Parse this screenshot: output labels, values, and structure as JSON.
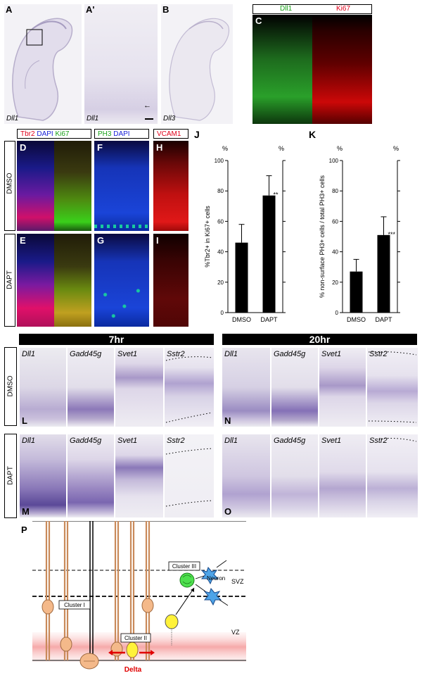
{
  "figure": {
    "top": {
      "panels": [
        {
          "letter": "A",
          "gene": "Dll1"
        },
        {
          "letter": "A'",
          "gene": "Dll1"
        },
        {
          "letter": "B",
          "gene": "Dll3"
        },
        {
          "letter": "C",
          "markers": [
            "Dll1",
            "Ki67"
          ]
        }
      ]
    },
    "fluor": {
      "header1": {
        "labels": [
          "Tbr2",
          "DAPI",
          "Ki67"
        ],
        "colors": [
          "#e0001a",
          "#1a22d8",
          "#1aa21a"
        ]
      },
      "header2": {
        "labels": [
          "PH3",
          "DAPI"
        ],
        "colors": [
          "#1aa21a",
          "#1a22d8"
        ]
      },
      "header3": {
        "labels": [
          "VCAM1"
        ],
        "colors": [
          "#e0001a"
        ]
      },
      "rows": [
        "DMSO",
        "DAPT"
      ],
      "letters": [
        "D",
        "F",
        "H",
        "E",
        "G",
        "I"
      ]
    },
    "bottom": {
      "timepoints": [
        "7hr",
        "20hr"
      ],
      "rows": [
        "DMSO",
        "DAPT"
      ],
      "genes": [
        "Dll1",
        "Gadd45g",
        "Svet1",
        "Sstr2"
      ],
      "letters": [
        "L",
        "N",
        "M",
        "O"
      ]
    },
    "schematic": {
      "letter": "P",
      "cluster1": "Cluster I",
      "cluster2": "Cluster II",
      "cluster3": "Cluster III",
      "neuron": "Neuron",
      "svz": "SVZ",
      "vz": "VZ",
      "delta": "Delta"
    }
  },
  "chart_data": [
    {
      "type": "bar",
      "letter": "J",
      "ylabel": "%Tbr2+ in Ki67+ cells",
      "unit": "%",
      "categories": [
        "DMSO",
        "DAPT"
      ],
      "values": [
        46,
        77
      ],
      "errors": [
        12,
        13
      ],
      "significance": [
        "",
        "**"
      ],
      "ylim": [
        0,
        100
      ],
      "yticks": [
        0,
        20,
        40,
        60,
        80,
        100
      ]
    },
    {
      "type": "bar",
      "letter": "K",
      "ylabel": "% non-surface PH3+ cells / total PH3+ cells",
      "unit": "%",
      "categories": [
        "DMSO",
        "DAPT"
      ],
      "values": [
        27,
        51
      ],
      "errors": [
        8,
        12
      ],
      "significance": [
        "",
        "***"
      ],
      "ylim": [
        0,
        100
      ],
      "yticks": [
        0,
        20,
        40,
        60,
        80,
        100
      ]
    }
  ]
}
